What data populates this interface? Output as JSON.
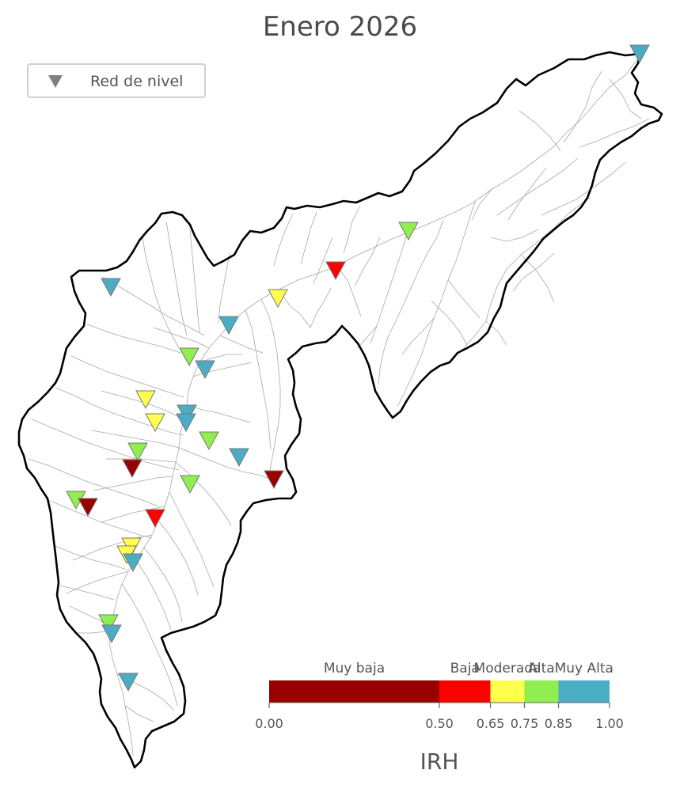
{
  "title": "Enero 2026",
  "legend": {
    "marker_icon": "down-triangle-icon",
    "label": "Red de nivel",
    "marker_color": "#808080"
  },
  "colorbar": {
    "title": "IRH",
    "categories": [
      {
        "label": "Muy baja",
        "color": "#990000",
        "from": 0.0,
        "to": 0.5
      },
      {
        "label": "Baja",
        "color": "#ff0000",
        "from": 0.5,
        "to": 0.65
      },
      {
        "label": "Moderada",
        "color": "#ffff4d",
        "from": 0.65,
        "to": 0.75
      },
      {
        "label": "Alta",
        "color": "#90ee50",
        "from": 0.75,
        "to": 0.85
      },
      {
        "label": "Muy Alta",
        "color": "#4bacc6",
        "from": 0.85,
        "to": 1.0
      }
    ],
    "ticks": [
      "0.00",
      "0.50",
      "0.65",
      "0.75",
      "0.85",
      "1.00"
    ]
  },
  "stations": [
    {
      "category": "Muy Alta"
    },
    {
      "category": "Alta"
    },
    {
      "category": "Baja"
    },
    {
      "category": "Moderada"
    },
    {
      "category": "Muy Alta"
    },
    {
      "category": "Muy Alta"
    },
    {
      "category": "Alta"
    },
    {
      "category": "Muy Alta"
    },
    {
      "category": "Moderada"
    },
    {
      "category": "Moderada"
    },
    {
      "category": "Muy Alta"
    },
    {
      "category": "Muy Alta"
    },
    {
      "category": "Alta"
    },
    {
      "category": "Alta"
    },
    {
      "category": "Muy baja"
    },
    {
      "category": "Muy Alta"
    },
    {
      "category": "Muy baja"
    },
    {
      "category": "Alta"
    },
    {
      "category": "Alta"
    },
    {
      "category": "Muy baja"
    },
    {
      "category": "Baja"
    },
    {
      "category": "Moderada"
    },
    {
      "category": "Moderada"
    },
    {
      "category": "Muy Alta"
    },
    {
      "category": "Alta"
    },
    {
      "category": "Muy Alta"
    },
    {
      "category": "Muy Alta"
    }
  ]
}
